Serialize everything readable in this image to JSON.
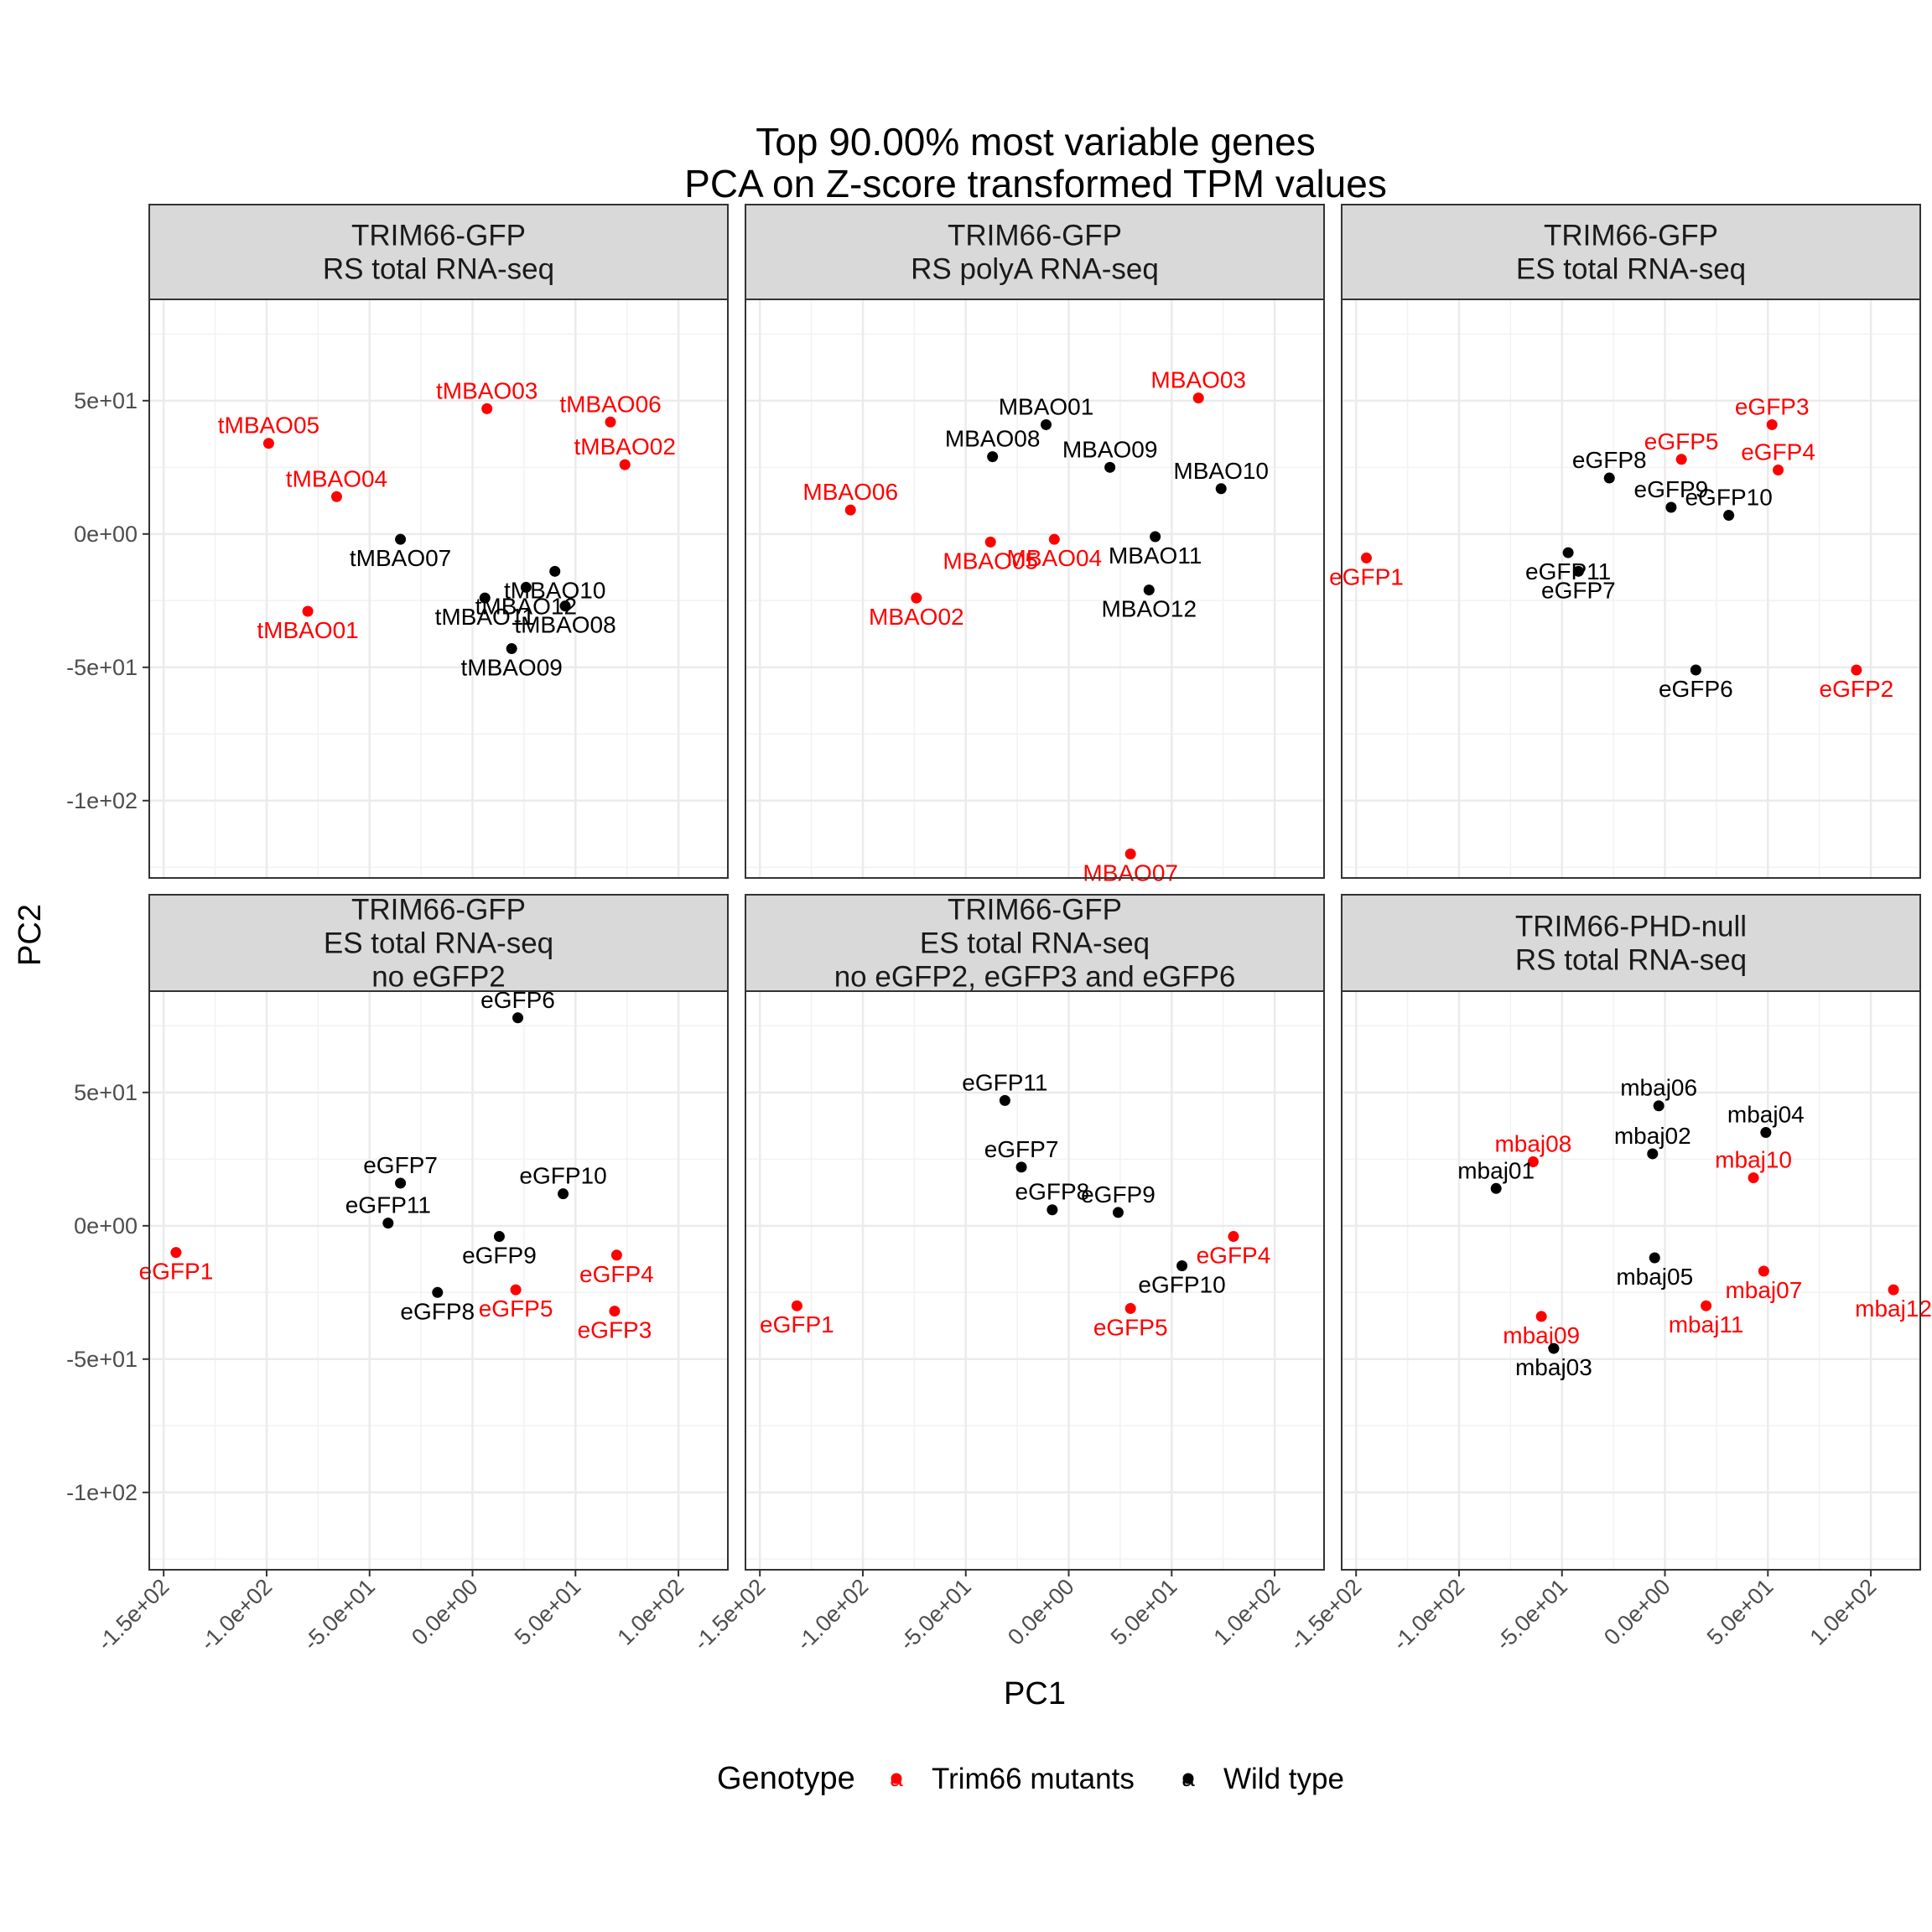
{
  "chart_data": {
    "type": "scatter",
    "title": [
      "Top 90.00% most variable genes",
      "PCA on Z-score transformed TPM values"
    ],
    "xlabel": "PC1",
    "ylabel": "PC2",
    "xlim": [
      -157,
      124
    ],
    "ylim": [
      -129,
      88
    ],
    "x_ticks": [
      -150,
      -100,
      -50,
      0,
      50,
      100
    ],
    "x_tick_labels": [
      "-1.5e+02",
      "-1.0e+02",
      "-5.0e+01",
      "0.0e+00",
      "5.0e+01",
      "1.0e+02"
    ],
    "y_ticks": [
      50,
      0,
      -50,
      -100
    ],
    "y_tick_labels": [
      "5e+01",
      "0e+00",
      "-5e+01",
      "-1e+02"
    ],
    "grid": true,
    "legend": {
      "title": "Genotype",
      "position": "bottom",
      "items": [
        {
          "key": "mutant",
          "label": "Trim66 mutants",
          "color": "#ff0000"
        },
        {
          "key": "wt",
          "label": "Wild type",
          "color": "#000000"
        }
      ]
    },
    "colors": {
      "mutant": "#ff0000",
      "wt": "#000000"
    },
    "panels": [
      {
        "strip": [
          "TRIM66-GFP",
          "RS total RNA-seq"
        ],
        "points": [
          {
            "label": "tMBAO05",
            "x": -99,
            "y": 34,
            "g": "mutant"
          },
          {
            "label": "tMBAO03",
            "x": 7,
            "y": 47,
            "g": "mutant"
          },
          {
            "label": "tMBAO06",
            "x": 67,
            "y": 42,
            "g": "mutant"
          },
          {
            "label": "tMBAO02",
            "x": 74,
            "y": 26,
            "g": "mutant"
          },
          {
            "label": "tMBAO04",
            "x": -66,
            "y": 14,
            "g": "mutant"
          },
          {
            "label": "tMBAO07",
            "x": -35,
            "y": -2,
            "g": "wt"
          },
          {
            "label": "tMBAO10",
            "x": 40,
            "y": -14,
            "g": "wt"
          },
          {
            "label": "tMBAO01",
            "x": -80,
            "y": -29,
            "g": "mutant"
          },
          {
            "label": "tMBAO12",
            "x": 26,
            "y": -20,
            "g": "wt"
          },
          {
            "label": "tMBAO11",
            "x": 6,
            "y": -24,
            "g": "wt"
          },
          {
            "label": "tMBAO08",
            "x": 45,
            "y": -27,
            "g": "wt"
          },
          {
            "label": "tMBAO09",
            "x": 19,
            "y": -43,
            "g": "wt"
          }
        ]
      },
      {
        "strip": [
          "TRIM66-GFP",
          "RS polyA RNA-seq"
        ],
        "points": [
          {
            "label": "MBAO03",
            "x": 63,
            "y": 51,
            "g": "mutant"
          },
          {
            "label": "MBAO01",
            "x": -11,
            "y": 41,
            "g": "wt"
          },
          {
            "label": "MBAO08",
            "x": -37,
            "y": 29,
            "g": "wt"
          },
          {
            "label": "MBAO09",
            "x": 20,
            "y": 25,
            "g": "wt"
          },
          {
            "label": "MBAO10",
            "x": 74,
            "y": 17,
            "g": "wt"
          },
          {
            "label": "MBAO06",
            "x": -106,
            "y": 9,
            "g": "mutant"
          },
          {
            "label": "MBAO04",
            "x": -7,
            "y": -2,
            "g": "mutant"
          },
          {
            "label": "MBAO11",
            "x": 42,
            "y": -1,
            "g": "wt"
          },
          {
            "label": "MBAO05",
            "x": -38,
            "y": -3,
            "g": "mutant"
          },
          {
            "label": "MBAO12",
            "x": 39,
            "y": -21,
            "g": "wt"
          },
          {
            "label": "MBAO02",
            "x": -74,
            "y": -24,
            "g": "mutant"
          },
          {
            "label": "MBAO07",
            "x": 30,
            "y": -120,
            "g": "mutant"
          }
        ]
      },
      {
        "strip": [
          "TRIM66-GFP",
          "ES total RNA-seq"
        ],
        "points": [
          {
            "label": "eGFP3",
            "x": 52,
            "y": 41,
            "g": "mutant"
          },
          {
            "label": "eGFP5",
            "x": 8,
            "y": 28,
            "g": "mutant"
          },
          {
            "label": "eGFP8",
            "x": -27,
            "y": 21,
            "g": "wt"
          },
          {
            "label": "eGFP4",
            "x": 55,
            "y": 24,
            "g": "mutant"
          },
          {
            "label": "eGFP9",
            "x": 3,
            "y": 10,
            "g": "wt"
          },
          {
            "label": "eGFP10",
            "x": 31,
            "y": 7,
            "g": "wt"
          },
          {
            "label": "eGFP11",
            "x": -47,
            "y": -7,
            "g": "wt"
          },
          {
            "label": "eGFP1",
            "x": -145,
            "y": -9,
            "g": "mutant"
          },
          {
            "label": "eGFP7",
            "x": -42,
            "y": -14,
            "g": "wt"
          },
          {
            "label": "eGFP6",
            "x": 15,
            "y": -51,
            "g": "wt"
          },
          {
            "label": "eGFP2",
            "x": 93,
            "y": -51,
            "g": "mutant"
          }
        ]
      },
      {
        "strip": [
          "TRIM66-GFP",
          "ES total RNA-seq",
          "no eGFP2"
        ],
        "points": [
          {
            "label": "eGFP6",
            "x": 22,
            "y": 78,
            "g": "wt"
          },
          {
            "label": "eGFP10",
            "x": 44,
            "y": 12,
            "g": "wt"
          },
          {
            "label": "eGFP7",
            "x": -35,
            "y": 16,
            "g": "wt"
          },
          {
            "label": "eGFP11",
            "x": -41,
            "y": 1,
            "g": "wt"
          },
          {
            "label": "eGFP9",
            "x": 13,
            "y": -4,
            "g": "wt"
          },
          {
            "label": "eGFP4",
            "x": 70,
            "y": -11,
            "g": "mutant"
          },
          {
            "label": "eGFP1",
            "x": -144,
            "y": -10,
            "g": "mutant"
          },
          {
            "label": "eGFP5",
            "x": 21,
            "y": -24,
            "g": "mutant"
          },
          {
            "label": "eGFP8",
            "x": -17,
            "y": -25,
            "g": "wt"
          },
          {
            "label": "eGFP3",
            "x": 69,
            "y": -32,
            "g": "mutant"
          }
        ]
      },
      {
        "strip": [
          "TRIM66-GFP",
          "ES total RNA-seq",
          "no eGFP2, eGFP3 and eGFP6"
        ],
        "points": [
          {
            "label": "eGFP11",
            "x": -31,
            "y": 47,
            "g": "wt"
          },
          {
            "label": "eGFP7",
            "x": -23,
            "y": 22,
            "g": "wt"
          },
          {
            "label": "eGFP8",
            "x": -8,
            "y": 6,
            "g": "wt"
          },
          {
            "label": "eGFP9",
            "x": 24,
            "y": 5,
            "g": "wt"
          },
          {
            "label": "eGFP4",
            "x": 80,
            "y": -4,
            "g": "mutant"
          },
          {
            "label": "eGFP10",
            "x": 55,
            "y": -15,
            "g": "wt"
          },
          {
            "label": "eGFP1",
            "x": -132,
            "y": -30,
            "g": "mutant"
          },
          {
            "label": "eGFP5",
            "x": 30,
            "y": -31,
            "g": "mutant"
          }
        ]
      },
      {
        "strip": [
          "TRIM66-PHD-null",
          "RS total RNA-seq"
        ],
        "points": [
          {
            "label": "mbaj06",
            "x": -3,
            "y": 45,
            "g": "wt"
          },
          {
            "label": "mbaj04",
            "x": 49,
            "y": 35,
            "g": "wt"
          },
          {
            "label": "mbaj08",
            "x": -64,
            "y": 24,
            "g": "mutant"
          },
          {
            "label": "mbaj02",
            "x": -6,
            "y": 27,
            "g": "wt"
          },
          {
            "label": "mbaj10",
            "x": 43,
            "y": 18,
            "g": "mutant"
          },
          {
            "label": "mbaj01",
            "x": -82,
            "y": 14,
            "g": "wt"
          },
          {
            "label": "mbaj05",
            "x": -5,
            "y": -12,
            "g": "wt"
          },
          {
            "label": "mbaj07",
            "x": 48,
            "y": -17,
            "g": "mutant"
          },
          {
            "label": "mbaj12",
            "x": 111,
            "y": -24,
            "g": "mutant"
          },
          {
            "label": "mbaj11",
            "x": 20,
            "y": -30,
            "g": "mutant"
          },
          {
            "label": "mbaj09",
            "x": -60,
            "y": -34,
            "g": "mutant"
          },
          {
            "label": "mbaj03",
            "x": -54,
            "y": -46,
            "g": "wt"
          }
        ]
      }
    ]
  }
}
